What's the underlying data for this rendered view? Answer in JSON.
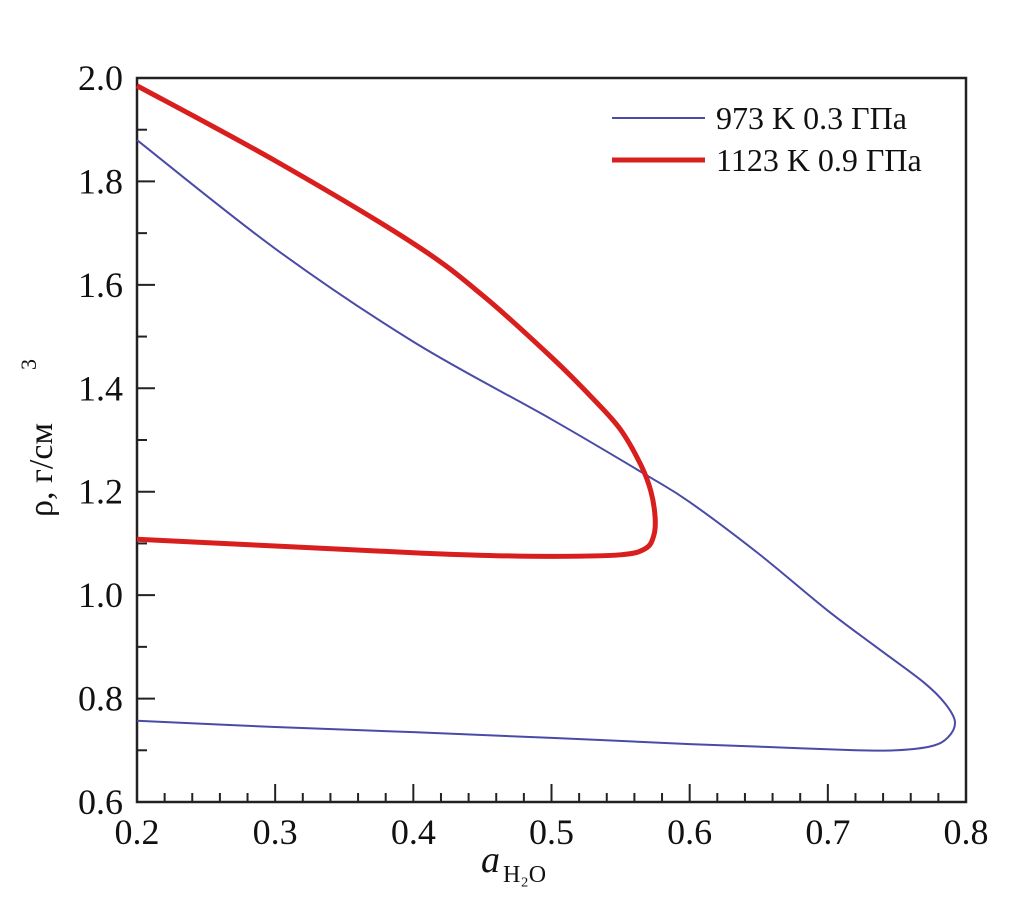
{
  "chart_data": {
    "type": "line",
    "title": "",
    "xlabel": "a",
    "xlabel_sub": "H₂O",
    "ylabel": "ρ,  г/см",
    "ylabel_sup": "3",
    "xlim": [
      0.2,
      0.8
    ],
    "ylim": [
      0.6,
      2.0
    ],
    "x_ticks": [
      "0.2",
      "0.3",
      "0.4",
      "0.5",
      "0.6",
      "0.7",
      "0.8"
    ],
    "y_ticks": [
      "0.6",
      "0.8",
      "1.0",
      "1.2",
      "1.4",
      "1.6",
      "1.8",
      "2.0"
    ],
    "grid": false,
    "legend_position": "top-right",
    "series": [
      {
        "name": "973 K  0.3 ГПа",
        "color": "#4a4aa8",
        "width": 2,
        "points": [
          [
            0.2,
            1.88
          ],
          [
            0.3,
            1.67
          ],
          [
            0.4,
            1.49
          ],
          [
            0.5,
            1.34
          ],
          [
            0.57,
            1.23
          ],
          [
            0.6,
            1.18
          ],
          [
            0.65,
            1.08
          ],
          [
            0.7,
            0.97
          ],
          [
            0.74,
            0.89
          ],
          [
            0.77,
            0.83
          ],
          [
            0.785,
            0.79
          ],
          [
            0.792,
            0.755
          ],
          [
            0.787,
            0.725
          ],
          [
            0.775,
            0.708
          ],
          [
            0.75,
            0.7
          ],
          [
            0.72,
            0.7
          ],
          [
            0.65,
            0.707
          ],
          [
            0.6,
            0.712
          ],
          [
            0.5,
            0.724
          ],
          [
            0.4,
            0.735
          ],
          [
            0.3,
            0.745
          ],
          [
            0.2,
            0.757
          ]
        ]
      },
      {
        "name": "1123 K 0.9 ГПа",
        "color": "#d91e1e",
        "width": 5,
        "points": [
          [
            0.2,
            1.985
          ],
          [
            0.3,
            1.84
          ],
          [
            0.4,
            1.68
          ],
          [
            0.45,
            1.58
          ],
          [
            0.5,
            1.46
          ],
          [
            0.53,
            1.38
          ],
          [
            0.55,
            1.32
          ],
          [
            0.565,
            1.25
          ],
          [
            0.572,
            1.2
          ],
          [
            0.575,
            1.15
          ],
          [
            0.574,
            1.115
          ],
          [
            0.568,
            1.09
          ],
          [
            0.55,
            1.078
          ],
          [
            0.5,
            1.075
          ],
          [
            0.45,
            1.077
          ],
          [
            0.4,
            1.082
          ],
          [
            0.3,
            1.095
          ],
          [
            0.2,
            1.108
          ]
        ]
      }
    ]
  }
}
